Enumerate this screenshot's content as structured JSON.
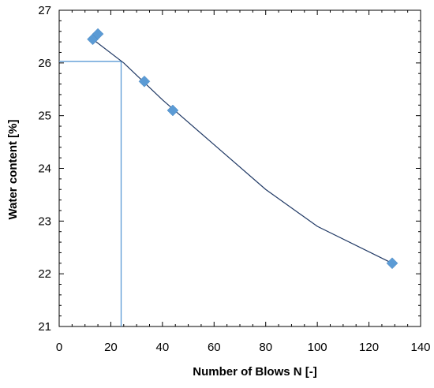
{
  "chart_data": {
    "type": "scatter",
    "title": "",
    "xlabel": "Number of Blows N [-]",
    "ylabel": "Water content [%]",
    "xlim": [
      0,
      140
    ],
    "ylim": [
      21,
      27
    ],
    "x_ticks": [
      0,
      20,
      40,
      60,
      80,
      100,
      120,
      140
    ],
    "y_ticks": [
      21,
      22,
      23,
      24,
      25,
      26,
      27
    ],
    "grid": false,
    "legend": "none",
    "series": [
      {
        "points": [
          {
            "x": 13,
            "y": 26.45
          },
          {
            "x": 15,
            "y": 26.55
          },
          {
            "x": 33,
            "y": 25.65
          },
          {
            "x": 44,
            "y": 25.1
          },
          {
            "x": 129,
            "y": 22.2
          }
        ],
        "marker": "diamond",
        "color": "#5B9BD5"
      }
    ],
    "trendline": {
      "type": "logarithmic",
      "points": [
        {
          "x": 13,
          "y": 26.45
        },
        {
          "x": 25,
          "y": 26.0
        },
        {
          "x": 40,
          "y": 25.3
        },
        {
          "x": 60,
          "y": 24.45
        },
        {
          "x": 80,
          "y": 23.6
        },
        {
          "x": 100,
          "y": 22.9
        },
        {
          "x": 129,
          "y": 22.2
        }
      ],
      "color": "#1F3864"
    },
    "guide_lines": {
      "x": 24,
      "y": 26.03,
      "color": "#5B9BD5"
    },
    "colors": {
      "axis": "#000000",
      "marker": "#5B9BD5",
      "trendline": "#1F3864",
      "guide": "#5B9BD5"
    }
  }
}
